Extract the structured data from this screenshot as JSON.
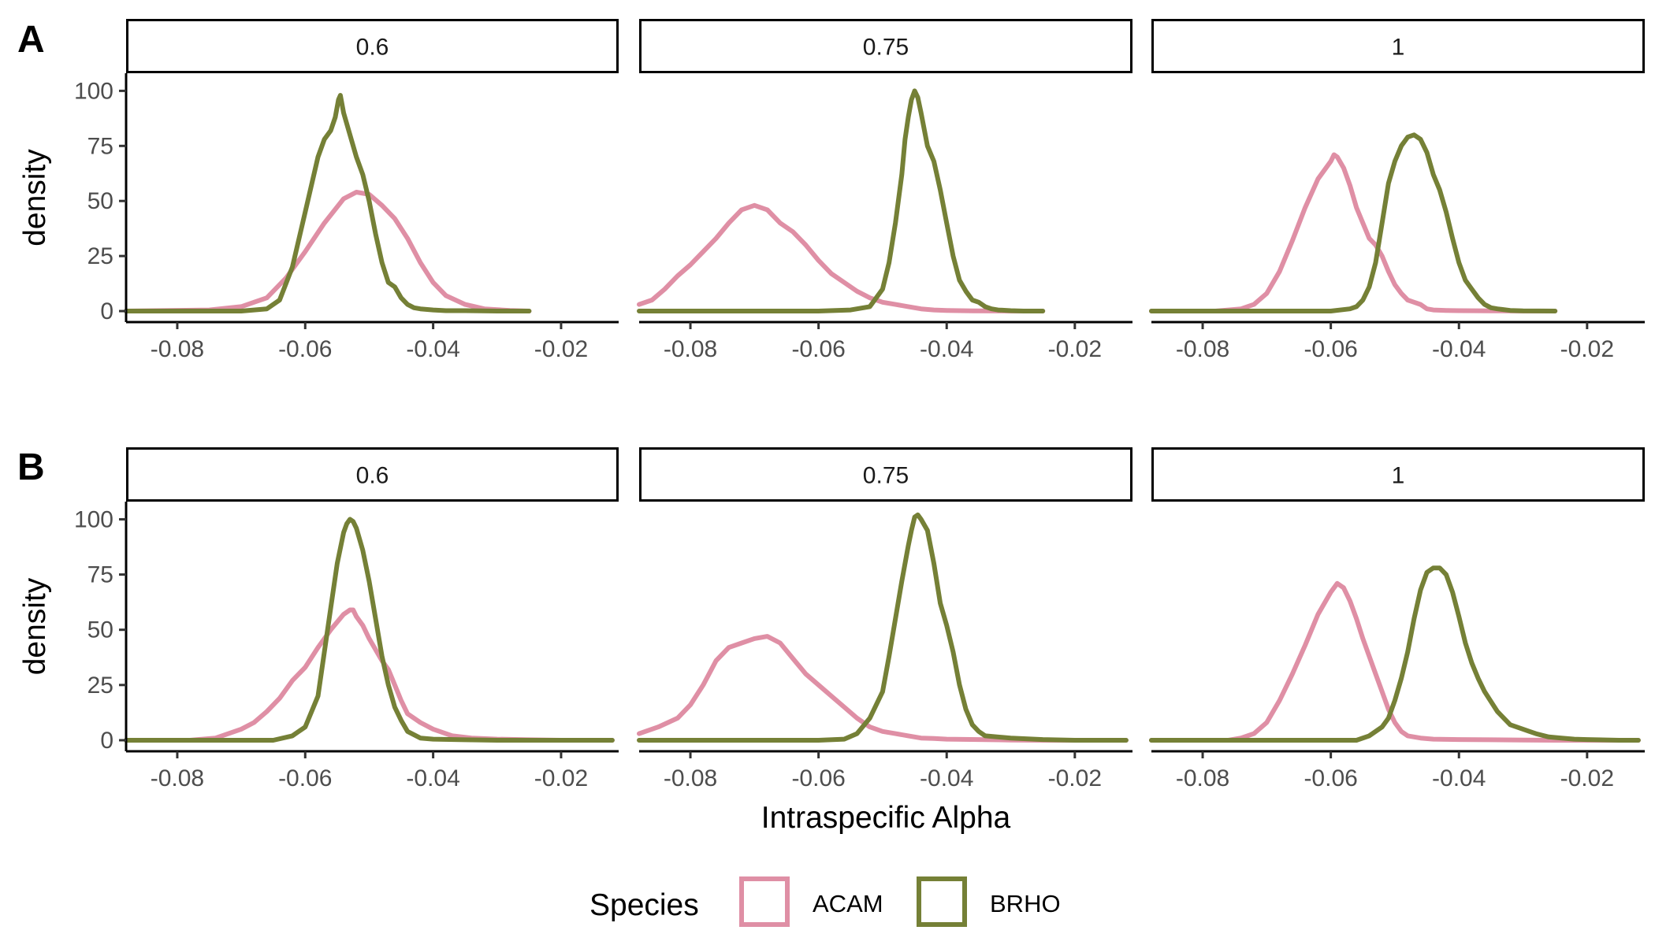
{
  "chart_data": {
    "type": "line",
    "kind": "density",
    "xlabel": "Intraspecific Alpha",
    "ylabel": "density",
    "xlim": [
      -0.088,
      -0.011
    ],
    "ylim": [
      -5,
      108
    ],
    "xticks": [
      -0.08,
      -0.06,
      -0.04,
      -0.02
    ],
    "xtick_labels": [
      "-0.08",
      "-0.06",
      "-0.04",
      "-0.02"
    ],
    "yticks": [
      0,
      25,
      50,
      75,
      100
    ],
    "ytick_labels": [
      "0",
      "25",
      "50",
      "75",
      "100"
    ],
    "legend": {
      "title": "Species",
      "position": "bottom",
      "entries": [
        {
          "name": "ACAM",
          "color": "#df8fa5"
        },
        {
          "name": "BRHO",
          "color": "#758036"
        }
      ]
    },
    "rows": [
      {
        "label": "A",
        "panels": [
          {
            "strip": "0.6",
            "series": [
              {
                "name": "ACAM",
                "x": [
                  -0.088,
                  -0.075,
                  -0.07,
                  -0.066,
                  -0.063,
                  -0.06,
                  -0.057,
                  -0.054,
                  -0.052,
                  -0.05,
                  -0.048,
                  -0.046,
                  -0.044,
                  -0.042,
                  -0.04,
                  -0.038,
                  -0.035,
                  -0.032,
                  -0.028,
                  -0.025
                ],
                "y": [
                  0,
                  0.5,
                  2,
                  6,
                  15,
                  27,
                  40,
                  51,
                  54,
                  53,
                  48,
                  42,
                  33,
                  22,
                  13,
                  7,
                  3,
                  1,
                  0.3,
                  0
                ]
              },
              {
                "name": "BRHO",
                "x": [
                  -0.088,
                  -0.07,
                  -0.066,
                  -0.064,
                  -0.062,
                  -0.06,
                  -0.058,
                  -0.057,
                  -0.056,
                  -0.0553,
                  -0.0548,
                  -0.0545,
                  -0.054,
                  -0.053,
                  -0.052,
                  -0.051,
                  -0.05,
                  -0.049,
                  -0.048,
                  -0.047,
                  -0.046,
                  -0.045,
                  -0.044,
                  -0.043,
                  -0.042,
                  -0.04,
                  -0.038,
                  -0.035,
                  -0.03,
                  -0.025
                ],
                "y": [
                  0,
                  0,
                  1,
                  5,
                  20,
                  45,
                  70,
                  78,
                  82,
                  88,
                  96,
                  98,
                  90,
                  80,
                  70,
                  62,
                  50,
                  35,
                  22,
                  13,
                  11,
                  6,
                  3,
                  1.5,
                  1,
                  0.5,
                  0.2,
                  0.2,
                  0,
                  0
                ]
              }
            ]
          },
          {
            "strip": "0.75",
            "series": [
              {
                "name": "ACAM",
                "x": [
                  -0.088,
                  -0.086,
                  -0.084,
                  -0.082,
                  -0.08,
                  -0.078,
                  -0.076,
                  -0.074,
                  -0.072,
                  -0.07,
                  -0.068,
                  -0.066,
                  -0.064,
                  -0.062,
                  -0.06,
                  -0.058,
                  -0.056,
                  -0.054,
                  -0.052,
                  -0.05,
                  -0.048,
                  -0.046,
                  -0.044,
                  -0.042,
                  -0.04,
                  -0.036,
                  -0.03,
                  -0.025
                ],
                "y": [
                  3,
                  5,
                  10,
                  16,
                  21,
                  27,
                  33,
                  40,
                  46,
                  48,
                  46,
                  40,
                  36,
                  30,
                  23,
                  17,
                  13,
                  9,
                  6,
                  4,
                  3,
                  2,
                  1,
                  0.5,
                  0.3,
                  0.1,
                  0,
                  0
                ]
              },
              {
                "name": "BRHO",
                "x": [
                  -0.088,
                  -0.07,
                  -0.06,
                  -0.055,
                  -0.052,
                  -0.05,
                  -0.049,
                  -0.048,
                  -0.047,
                  -0.0465,
                  -0.046,
                  -0.0455,
                  -0.045,
                  -0.0445,
                  -0.044,
                  -0.043,
                  -0.042,
                  -0.041,
                  -0.04,
                  -0.039,
                  -0.038,
                  -0.037,
                  -0.036,
                  -0.035,
                  -0.034,
                  -0.033,
                  -0.032,
                  -0.03,
                  -0.028,
                  -0.025
                ],
                "y": [
                  0,
                  0,
                  0,
                  0.5,
                  2,
                  10,
                  22,
                  40,
                  62,
                  78,
                  88,
                  96,
                  100,
                  97,
                  90,
                  75,
                  68,
                  55,
                  40,
                  25,
                  14,
                  9,
                  5,
                  4,
                  2,
                  1,
                  0.5,
                  0.2,
                  0,
                  0
                ]
              }
            ]
          },
          {
            "strip": "1",
            "series": [
              {
                "name": "ACAM",
                "x": [
                  -0.088,
                  -0.078,
                  -0.074,
                  -0.072,
                  -0.07,
                  -0.068,
                  -0.066,
                  -0.064,
                  -0.062,
                  -0.06,
                  -0.0595,
                  -0.059,
                  -0.058,
                  -0.057,
                  -0.056,
                  -0.055,
                  -0.054,
                  -0.053,
                  -0.052,
                  -0.051,
                  -0.05,
                  -0.049,
                  -0.048,
                  -0.047,
                  -0.046,
                  -0.045,
                  -0.044,
                  -0.042,
                  -0.04,
                  -0.035,
                  -0.03,
                  -0.025
                ],
                "y": [
                  0,
                  0,
                  1,
                  3,
                  8,
                  18,
                  32,
                  47,
                  60,
                  68,
                  71,
                  70,
                  65,
                  57,
                  47,
                  40,
                  33,
                  30,
                  25,
                  18,
                  12,
                  8,
                  5,
                  4,
                  3,
                  1,
                  0.5,
                  0.3,
                  0.2,
                  0.1,
                  0,
                  0
                ]
              },
              {
                "name": "BRHO",
                "x": [
                  -0.088,
                  -0.06,
                  -0.057,
                  -0.056,
                  -0.055,
                  -0.054,
                  -0.053,
                  -0.052,
                  -0.051,
                  -0.05,
                  -0.049,
                  -0.048,
                  -0.047,
                  -0.046,
                  -0.045,
                  -0.044,
                  -0.043,
                  -0.042,
                  -0.041,
                  -0.04,
                  -0.039,
                  -0.038,
                  -0.037,
                  -0.036,
                  -0.035,
                  -0.034,
                  -0.032,
                  -0.03,
                  -0.025
                ],
                "y": [
                  0,
                  0,
                  1,
                  2,
                  5,
                  11,
                  22,
                  40,
                  58,
                  68,
                  75,
                  79,
                  80,
                  78,
                  72,
                  62,
                  55,
                  45,
                  33,
                  22,
                  14,
                  10,
                  6,
                  3,
                  1.5,
                  1,
                  0.3,
                  0.1,
                  0
                ]
              }
            ]
          }
        ]
      },
      {
        "label": "B",
        "panels": [
          {
            "strip": "0.6",
            "series": [
              {
                "name": "ACAM",
                "x": [
                  -0.088,
                  -0.078,
                  -0.074,
                  -0.07,
                  -0.068,
                  -0.066,
                  -0.064,
                  -0.062,
                  -0.06,
                  -0.058,
                  -0.056,
                  -0.054,
                  -0.053,
                  -0.0525,
                  -0.052,
                  -0.051,
                  -0.05,
                  -0.049,
                  -0.048,
                  -0.047,
                  -0.046,
                  -0.045,
                  -0.044,
                  -0.042,
                  -0.04,
                  -0.037,
                  -0.034,
                  -0.03,
                  -0.025,
                  -0.02,
                  -0.012
                ],
                "y": [
                  0,
                  0,
                  1,
                  5,
                  8,
                  13,
                  19,
                  27,
                  33,
                  42,
                  50,
                  57,
                  59,
                  59,
                  56,
                  52,
                  46,
                  41,
                  36,
                  32,
                  25,
                  18,
                  12,
                  8,
                  5,
                  2,
                  1,
                  0.5,
                  0.2,
                  0,
                  0
                ]
              },
              {
                "name": "BRHO",
                "x": [
                  -0.088,
                  -0.065,
                  -0.062,
                  -0.06,
                  -0.058,
                  -0.057,
                  -0.056,
                  -0.055,
                  -0.054,
                  -0.0535,
                  -0.053,
                  -0.0525,
                  -0.052,
                  -0.051,
                  -0.05,
                  -0.049,
                  -0.048,
                  -0.047,
                  -0.046,
                  -0.045,
                  -0.044,
                  -0.042,
                  -0.04,
                  -0.035,
                  -0.03,
                  -0.025,
                  -0.02,
                  -0.012
                ],
                "y": [
                  0,
                  0,
                  2,
                  6,
                  20,
                  40,
                  60,
                  80,
                  94,
                  98,
                  100,
                  99,
                  96,
                  86,
                  72,
                  55,
                  38,
                  25,
                  15,
                  9,
                  4,
                  1,
                  0.5,
                  0.2,
                  0,
                  0,
                  0,
                  0
                ]
              }
            ]
          },
          {
            "strip": "0.75",
            "series": [
              {
                "name": "ACAM",
                "x": [
                  -0.088,
                  -0.085,
                  -0.082,
                  -0.08,
                  -0.078,
                  -0.076,
                  -0.074,
                  -0.072,
                  -0.07,
                  -0.068,
                  -0.066,
                  -0.064,
                  -0.062,
                  -0.06,
                  -0.058,
                  -0.056,
                  -0.054,
                  -0.052,
                  -0.05,
                  -0.048,
                  -0.046,
                  -0.044,
                  -0.042,
                  -0.04,
                  -0.035,
                  -0.03,
                  -0.025,
                  -0.02,
                  -0.012
                ],
                "y": [
                  3,
                  6,
                  10,
                  16,
                  25,
                  36,
                  42,
                  44,
                  46,
                  47,
                  44,
                  37,
                  30,
                  25,
                  20,
                  15,
                  10,
                  6,
                  4,
                  3,
                  2,
                  1,
                  0.8,
                  0.5,
                  0.3,
                  0.1,
                  0,
                  0,
                  0
                ]
              },
              {
                "name": "BRHO",
                "x": [
                  -0.088,
                  -0.06,
                  -0.056,
                  -0.054,
                  -0.052,
                  -0.05,
                  -0.049,
                  -0.048,
                  -0.047,
                  -0.046,
                  -0.0455,
                  -0.045,
                  -0.0445,
                  -0.044,
                  -0.043,
                  -0.042,
                  -0.041,
                  -0.04,
                  -0.039,
                  -0.038,
                  -0.037,
                  -0.036,
                  -0.035,
                  -0.034,
                  -0.03,
                  -0.025,
                  -0.02,
                  -0.012
                ],
                "y": [
                  0,
                  0,
                  0.5,
                  3,
                  10,
                  22,
                  38,
                  55,
                  72,
                  88,
                  95,
                  101,
                  102,
                  100,
                  95,
                  80,
                  62,
                  52,
                  40,
                  25,
                  14,
                  7,
                  4,
                  2,
                  1,
                  0.3,
                  0,
                  0
                ]
              }
            ]
          },
          {
            "strip": "1",
            "series": [
              {
                "name": "ACAM",
                "x": [
                  -0.088,
                  -0.076,
                  -0.074,
                  -0.072,
                  -0.07,
                  -0.068,
                  -0.066,
                  -0.064,
                  -0.062,
                  -0.06,
                  -0.059,
                  -0.058,
                  -0.057,
                  -0.056,
                  -0.055,
                  -0.054,
                  -0.053,
                  -0.052,
                  -0.051,
                  -0.05,
                  -0.049,
                  -0.048,
                  -0.046,
                  -0.044,
                  -0.04,
                  -0.035,
                  -0.03,
                  -0.025,
                  -0.02,
                  -0.012
                ],
                "y": [
                  0,
                  0,
                  1,
                  3,
                  8,
                  18,
                  30,
                  43,
                  57,
                  67,
                  71,
                  69,
                  63,
                  55,
                  46,
                  38,
                  30,
                  22,
                  14,
                  8,
                  4,
                  2,
                  1,
                  0.5,
                  0.3,
                  0.2,
                  0.1,
                  0,
                  0,
                  0
                ]
              },
              {
                "name": "BRHO",
                "x": [
                  -0.088,
                  -0.056,
                  -0.054,
                  -0.052,
                  -0.051,
                  -0.05,
                  -0.049,
                  -0.048,
                  -0.047,
                  -0.046,
                  -0.045,
                  -0.044,
                  -0.043,
                  -0.042,
                  -0.041,
                  -0.04,
                  -0.039,
                  -0.038,
                  -0.037,
                  -0.036,
                  -0.034,
                  -0.032,
                  -0.03,
                  -0.029,
                  -0.028,
                  -0.026,
                  -0.024,
                  -0.022,
                  -0.02,
                  -0.015,
                  -0.012
                ],
                "y": [
                  0,
                  0,
                  2,
                  6,
                  10,
                  18,
                  28,
                  40,
                  55,
                  68,
                  76,
                  78,
                  78,
                  75,
                  67,
                  56,
                  44,
                  35,
                  28,
                  22,
                  13,
                  7,
                  5,
                  4,
                  3,
                  1.5,
                  1,
                  0.5,
                  0.3,
                  0,
                  0
                ]
              }
            ]
          }
        ]
      }
    ]
  }
}
